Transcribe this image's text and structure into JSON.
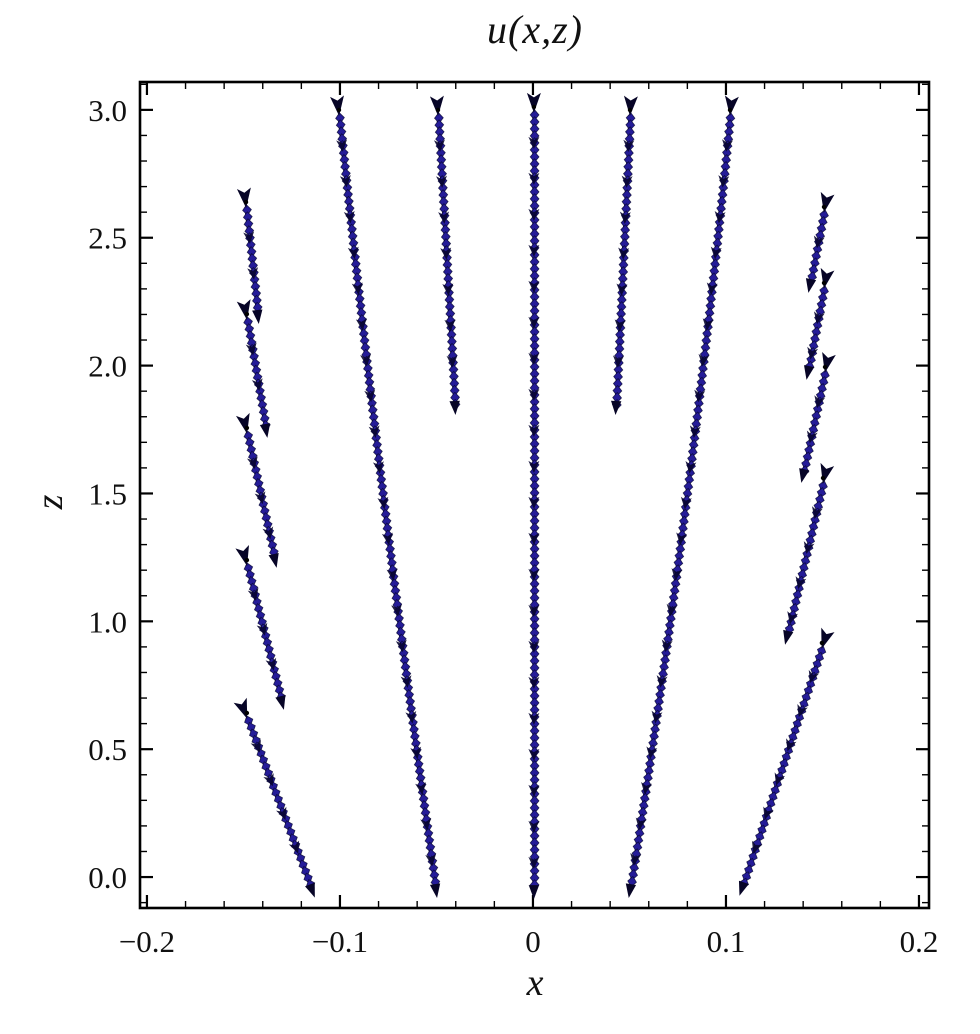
{
  "title": "u(x,z)",
  "colors": {
    "background": "#ffffff",
    "frame": "#000000",
    "bead_blue": "#251c98",
    "core_blue": "#14104e",
    "arrow_dark": "#070527",
    "tick": "#000000"
  },
  "chart_data": {
    "type": "scatter",
    "variant": "vector-field-streaklines",
    "title": "u(x,z)",
    "xlabel": "x",
    "ylabel": "z",
    "xlim": [
      -0.2036,
      0.2052
    ],
    "ylim": [
      -0.121,
      3.109
    ],
    "grid": false,
    "legend": null,
    "arrow_direction": "up-and-outward",
    "x_ticks": {
      "values": [
        -0.2,
        -0.1,
        0,
        0.1,
        0.2
      ],
      "labels": [
        "−0.2",
        "−0.1",
        "0",
        "0.1",
        "0.2"
      ],
      "minor_step": 0.02
    },
    "z_ticks": {
      "values": [
        0,
        0.5,
        1,
        1.5,
        2,
        2.5,
        3
      ],
      "labels": [
        "0.0",
        "0.5",
        "1.0",
        "1.5",
        "2.0",
        "2.5",
        "3.0"
      ],
      "minor_step": 0.1
    },
    "streaks": [
      {
        "name": "left-outer-1",
        "points": [
          [
            -0.1487,
            2.62
          ],
          [
            -0.1425,
            2.194
          ]
        ]
      },
      {
        "name": "left-outer-2",
        "points": [
          [
            -0.1482,
            2.182
          ],
          [
            -0.1383,
            1.748
          ]
        ]
      },
      {
        "name": "left-outer-3",
        "points": [
          [
            -0.1482,
            1.737
          ],
          [
            -0.1337,
            1.24
          ]
        ]
      },
      {
        "name": "left-outer-4",
        "points": [
          [
            -0.1482,
            1.22
          ],
          [
            -0.1301,
            0.684
          ]
        ]
      },
      {
        "name": "left-outer-5",
        "points": [
          [
            -0.1482,
            0.622
          ],
          [
            -0.1145,
            -0.051
          ]
        ]
      },
      {
        "name": "left-long",
        "curve": true,
        "points": [
          [
            -0.1005,
            2.98
          ],
          [
            -0.0803,
            1.514
          ],
          [
            -0.0503,
            -0.051
          ]
        ]
      },
      {
        "name": "left-medium",
        "points": [
          [
            -0.0492,
            2.98
          ],
          [
            -0.0404,
            1.838
          ]
        ]
      },
      {
        "name": "center",
        "points": [
          [
            0.0005,
            2.992
          ],
          [
            0.0005,
            -0.055
          ]
        ]
      },
      {
        "name": "right-medium",
        "points": [
          [
            0.0503,
            2.98
          ],
          [
            0.043,
            1.838
          ]
        ]
      },
      {
        "name": "right-long",
        "curve": true,
        "points": [
          [
            0.1021,
            2.98
          ],
          [
            0.0829,
            1.514
          ],
          [
            0.0503,
            -0.051
          ]
        ]
      },
      {
        "name": "right-outer-1",
        "points": [
          [
            0.1508,
            2.601
          ],
          [
            0.1435,
            2.315
          ]
        ]
      },
      {
        "name": "right-outer-2",
        "points": [
          [
            0.1508,
            2.304
          ],
          [
            0.1425,
            1.975
          ]
        ]
      },
      {
        "name": "right-outer-3",
        "points": [
          [
            0.1513,
            1.975
          ],
          [
            0.1399,
            1.572
          ]
        ]
      },
      {
        "name": "right-outer-4",
        "points": [
          [
            0.1503,
            1.541
          ],
          [
            0.1316,
            0.939
          ]
        ]
      },
      {
        "name": "right-outer-5",
        "points": [
          [
            0.1497,
            0.896
          ],
          [
            0.1083,
            -0.043
          ]
        ]
      }
    ]
  }
}
